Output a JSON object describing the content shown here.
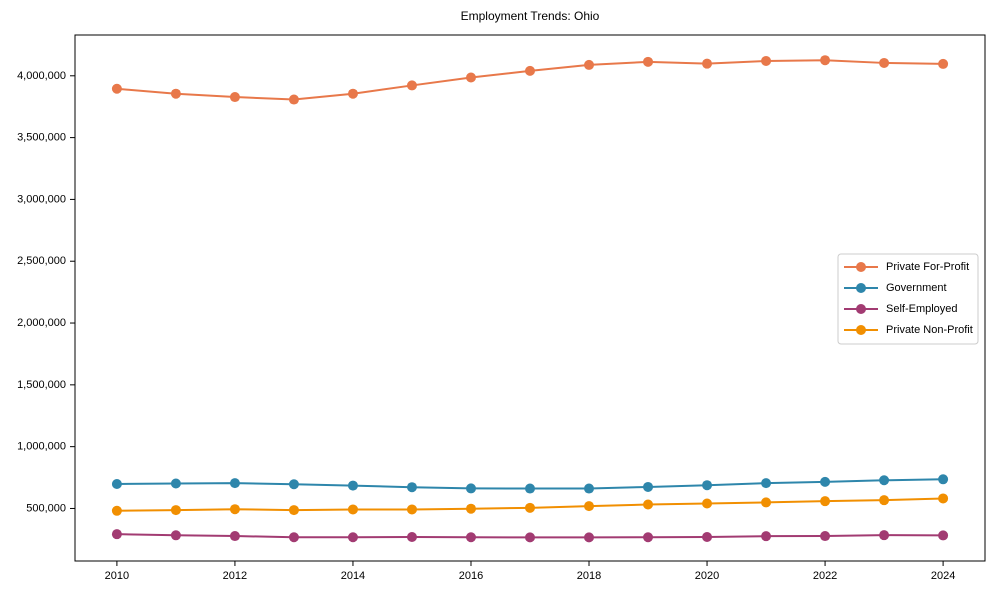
{
  "chart_data": {
    "type": "line",
    "title": "Employment Trends: Ohio",
    "xlabel": "",
    "ylabel": "",
    "grid": false,
    "legend_position": "right",
    "marker": "circle",
    "x": [
      2010,
      2011,
      2012,
      2013,
      2014,
      2015,
      2016,
      2017,
      2018,
      2019,
      2020,
      2021,
      2022,
      2023,
      2024
    ],
    "series": [
      {
        "name": "Private For-Profit",
        "color": "#E8784A",
        "values": [
          3895000,
          3855000,
          3828000,
          3808000,
          3855000,
          3922000,
          3986000,
          4040000,
          4088000,
          4113000,
          4098000,
          4120000,
          4126000,
          4104000,
          4096000
        ]
      },
      {
        "name": "Government",
        "color": "#2E86AB",
        "values": [
          698000,
          702000,
          705000,
          696000,
          685000,
          672000,
          662000,
          661000,
          661000,
          674000,
          688000,
          705000,
          715000,
          728000,
          736000
        ]
      },
      {
        "name": "Self-Employed",
        "color": "#A23B72",
        "values": [
          292000,
          283000,
          277000,
          267000,
          267000,
          269000,
          267000,
          266000,
          266000,
          267000,
          269000,
          276000,
          277000,
          284000,
          282000
        ]
      },
      {
        "name": "Private Non-Profit",
        "color": "#F18F01",
        "values": [
          481000,
          487000,
          494000,
          487000,
          492000,
          492000,
          498000,
          505000,
          519000,
          532000,
          540000,
          549000,
          559000,
          567000,
          581000
        ]
      }
    ],
    "xlim": [
      2009.29,
      2024.71
    ],
    "ylim": [
      75000,
      4330000
    ],
    "xticks": {
      "values": [
        2010,
        2012,
        2014,
        2016,
        2018,
        2020,
        2022,
        2024
      ],
      "labels": [
        "2010",
        "2012",
        "2014",
        "2016",
        "2018",
        "2020",
        "2022",
        "2024"
      ]
    },
    "yticks": {
      "values": [
        500000,
        1000000,
        1500000,
        2000000,
        2500000,
        3000000,
        3500000,
        4000000
      ],
      "labels": [
        "500,000",
        "1,000,000",
        "1,500,000",
        "2,000,000",
        "2,500,000",
        "3,000,000",
        "3,500,000",
        "4,000,000"
      ]
    },
    "axis_color": "#000000",
    "legend_border_color": "#cccccc"
  }
}
